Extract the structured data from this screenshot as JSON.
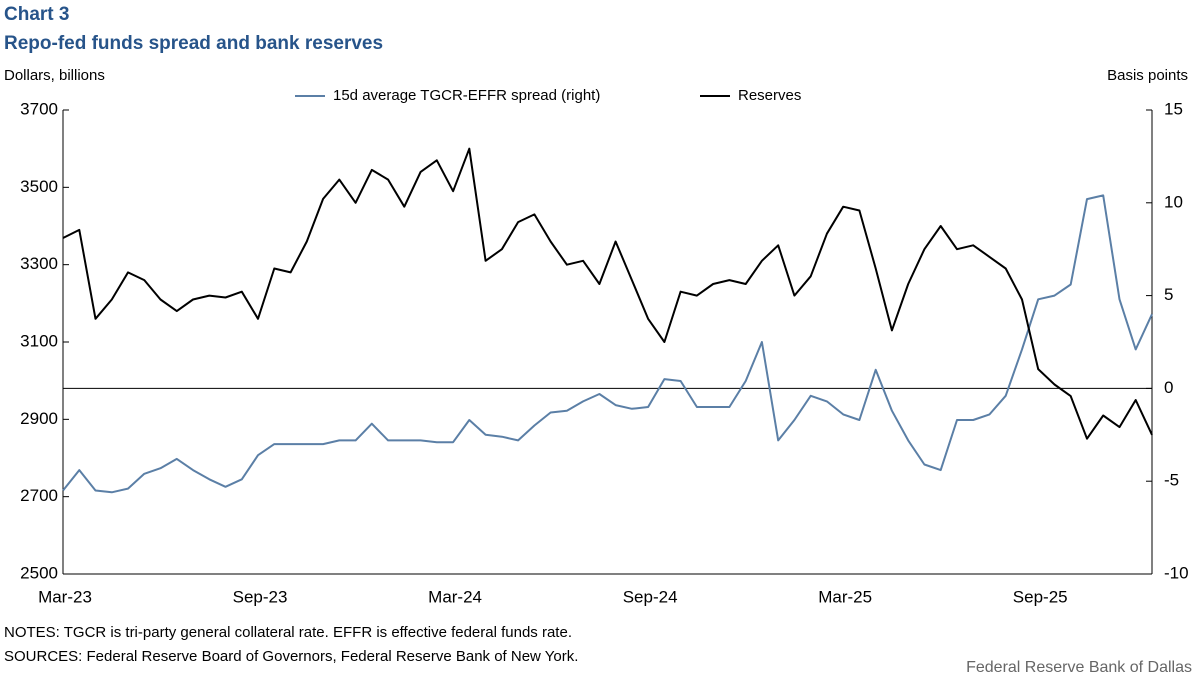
{
  "chart_data": {
    "type": "line",
    "title": "Chart 3",
    "subtitle": "Repo-fed funds spread and bank reserves",
    "y_label": "Dollars, billions",
    "y2_label": "Basis points",
    "notes": "NOTES: TGCR is tri-party general collateral rate. EFFR is effective federal funds rate.",
    "sources": "SOURCES: Federal Reserve Board of Governors, Federal Reserve Bank of New York.",
    "credit": "Federal Reserve Bank of Dallas",
    "categories": [
      "Mar-23",
      null,
      null,
      null,
      null,
      null,
      null,
      null,
      null,
      null,
      null,
      null,
      "Sep-23",
      null,
      null,
      null,
      null,
      null,
      null,
      null,
      null,
      null,
      null,
      null,
      "Mar-24",
      null,
      null,
      null,
      null,
      null,
      null,
      null,
      null,
      null,
      null,
      null,
      "Sep-24",
      null,
      null,
      null,
      null,
      null,
      null,
      null,
      null,
      null,
      null,
      null,
      "Mar-25",
      null,
      null,
      null,
      null,
      null,
      null,
      null,
      null,
      null,
      null,
      null,
      "Sep-25",
      null,
      null,
      null,
      null,
      null,
      null,
      null
    ],
    "ylim": [
      2500,
      3700
    ],
    "yticks": [
      2500,
      2700,
      2900,
      3100,
      3300,
      3500,
      3700
    ],
    "y2lim": [
      -10,
      15
    ],
    "y2ticks": [
      -10,
      -5,
      0,
      5,
      10,
      15
    ],
    "series": [
      {
        "name": "15d average TGCR-EFFR spread (right)",
        "color": "#5b7fa6",
        "axis": "y2",
        "values": [
          -5.5,
          -4.4,
          -5.5,
          -5.6,
          -5.4,
          -4.6,
          -4.3,
          -3.8,
          -4.4,
          -4.9,
          -5.3,
          -4.9,
          -3.6,
          -3.0,
          -3.0,
          -3.0,
          -3.0,
          -2.8,
          -2.8,
          -1.9,
          -2.8,
          -2.8,
          -2.8,
          -2.9,
          -2.9,
          -1.7,
          -2.5,
          -2.6,
          -2.8,
          -2.0,
          -1.3,
          -1.2,
          -0.7,
          -0.3,
          -0.9,
          -1.1,
          -1.0,
          0.5,
          0.4,
          -1.0,
          -1.0,
          -1.0,
          0.4,
          2.5,
          -2.8,
          -1.7,
          -0.4,
          -0.7,
          -1.4,
          -1.7,
          1.0,
          -1.2,
          -2.8,
          -4.1,
          -4.4,
          -1.7,
          -1.7,
          -1.4,
          -0.4,
          2.1,
          4.8,
          5.0,
          5.6,
          10.2,
          10.4,
          4.8,
          2.1,
          4.0
        ]
      },
      {
        "name": "Reserves",
        "color": "#000000",
        "values": [
          3369,
          3390,
          3160,
          3210,
          3280,
          3260,
          3210,
          3180,
          3210,
          3220,
          3215,
          3230,
          3160,
          3290,
          3280,
          3360,
          3470,
          3520,
          3460,
          3545,
          3520,
          3450,
          3540,
          3570,
          3490,
          3600,
          3310,
          3340,
          3410,
          3430,
          3360,
          3300,
          3310,
          3250,
          3360,
          3260,
          3160,
          3100,
          3230,
          3220,
          3250,
          3260,
          3250,
          3310,
          3350,
          3220,
          3270,
          3380,
          3450,
          3440,
          3290,
          3130,
          3250,
          3340,
          3400,
          3340,
          3350,
          3320,
          3290,
          3210,
          3030,
          2990,
          2960,
          2850,
          2910,
          2880,
          2950,
          2860
        ]
      }
    ]
  }
}
